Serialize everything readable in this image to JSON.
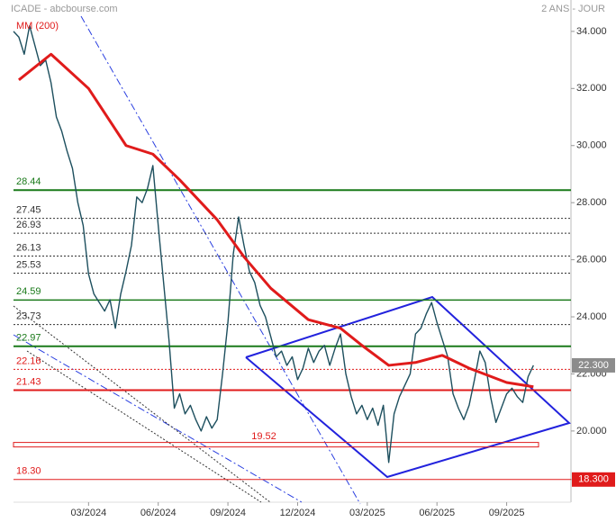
{
  "chart_data": {
    "type": "line",
    "title": "ICADE - abcbourse.com",
    "subtitle": "2 ANS - JOUR",
    "xlim": [
      0,
      104
    ],
    "ylim": [
      17.6,
      35.1
    ],
    "xticks": [
      {
        "value": 14,
        "label": "03/2024"
      },
      {
        "value": 27,
        "label": "06/2024"
      },
      {
        "value": 40,
        "label": "09/2024"
      },
      {
        "value": 53,
        "label": "12/2024"
      },
      {
        "value": 66,
        "label": "03/2025"
      },
      {
        "value": 79,
        "label": "06/2025"
      },
      {
        "value": 92,
        "label": "09/2025"
      }
    ],
    "yticks": [
      {
        "value": 34,
        "label": "34.000"
      },
      {
        "value": 32,
        "label": "32.000"
      },
      {
        "value": 30,
        "label": "30.000"
      },
      {
        "value": 28,
        "label": "28.000"
      },
      {
        "value": 26,
        "label": "26.000"
      },
      {
        "value": 24,
        "label": "24.000"
      },
      {
        "value": 22,
        "label": "22.000"
      },
      {
        "value": 20,
        "label": "20.000"
      },
      {
        "value": 18.3,
        "label": "18.300"
      }
    ],
    "series": [
      {
        "name": "ICADE",
        "color": "#1d4f5e",
        "width": 1.4,
        "x": [
          0,
          1,
          2,
          3,
          4,
          5,
          6,
          7,
          8,
          9,
          10,
          11,
          12,
          13,
          14,
          15,
          16,
          17,
          18,
          19,
          20,
          21,
          22,
          23,
          24,
          25,
          26,
          27,
          28,
          29,
          30,
          31,
          32,
          33,
          34,
          35,
          36,
          37,
          38,
          39,
          40,
          41,
          42,
          43,
          44,
          45,
          46,
          47,
          48,
          49,
          50,
          51,
          52,
          53,
          54,
          55,
          56,
          57,
          58,
          59,
          60,
          61,
          62,
          63,
          64,
          65,
          66,
          67,
          68,
          69,
          70,
          71,
          72,
          73,
          74,
          75,
          76,
          77,
          78,
          79,
          80,
          81,
          82,
          83,
          84,
          85,
          86,
          87,
          88,
          89,
          90,
          91,
          92,
          93,
          94,
          95,
          96,
          97
        ],
        "values": [
          34.0,
          33.8,
          33.2,
          34.2,
          33.5,
          32.8,
          33.0,
          32.2,
          31.0,
          30.5,
          29.8,
          29.2,
          28.0,
          27.2,
          25.5,
          24.8,
          24.5,
          24.2,
          24.6,
          23.6,
          24.8,
          25.6,
          26.5,
          28.2,
          28.0,
          28.5,
          29.3,
          27.2,
          25.2,
          23.2,
          20.8,
          21.3,
          20.6,
          20.9,
          20.4,
          20.0,
          20.5,
          20.1,
          20.4,
          22.0,
          23.8,
          26.2,
          27.5,
          26.5,
          25.6,
          25.2,
          24.4,
          24.0,
          23.3,
          22.6,
          22.8,
          22.3,
          22.6,
          21.8,
          22.2,
          22.9,
          22.4,
          22.8,
          23.0,
          22.3,
          22.9,
          23.4,
          22.0,
          21.2,
          20.6,
          20.9,
          20.4,
          20.8,
          20.2,
          20.9,
          18.9,
          20.6,
          21.2,
          21.6,
          22.0,
          23.4,
          23.6,
          24.1,
          24.5,
          23.8,
          23.2,
          22.6,
          21.3,
          20.8,
          20.4,
          20.9,
          21.8,
          22.8,
          22.4,
          21.2,
          20.3,
          20.8,
          21.3,
          21.5,
          21.2,
          21.0,
          21.9,
          22.3
        ]
      },
      {
        "name": "MM (200)",
        "color": "#e01b1b",
        "width": 3,
        "x": [
          1,
          7,
          14,
          21,
          26,
          31,
          38,
          43,
          48,
          55,
          61,
          65,
          70,
          75,
          80,
          85,
          92,
          97
        ],
        "values": [
          32.3,
          33.2,
          32.0,
          30.0,
          29.7,
          28.8,
          27.4,
          26.1,
          25.0,
          23.9,
          23.6,
          23.0,
          22.3,
          22.4,
          22.65,
          22.2,
          21.7,
          21.55
        ]
      }
    ],
    "levels": [
      {
        "value": 28.44,
        "label": "28.44",
        "color": "#1a7a1a",
        "style": "solid",
        "width": 2
      },
      {
        "value": 27.45,
        "label": "27.45",
        "color": "#333333",
        "style": "dotted",
        "width": 1
      },
      {
        "value": 26.93,
        "label": "26.93",
        "color": "#333333",
        "style": "dotted",
        "width": 1
      },
      {
        "value": 26.13,
        "label": "26.13",
        "color": "#333333",
        "style": "dotted",
        "width": 1
      },
      {
        "value": 25.53,
        "label": "25.53",
        "color": "#333333",
        "style": "dotted",
        "width": 1
      },
      {
        "value": 24.59,
        "label": "24.59",
        "color": "#1a7a1a",
        "style": "solid",
        "width": 1.5
      },
      {
        "value": 23.73,
        "label": "23.73",
        "color": "#333333",
        "style": "dotted",
        "width": 1
      },
      {
        "value": 22.97,
        "label": "22.97",
        "color": "#1a7a1a",
        "style": "solid",
        "width": 2
      },
      {
        "value": 22.16,
        "label": "22.16",
        "color": "#e01b1b",
        "style": "dotted",
        "width": 1
      },
      {
        "value": 21.43,
        "label": "21.43",
        "color": "#e01b1b",
        "style": "solid",
        "width": 2
      },
      {
        "value": 18.3,
        "label": "18.30",
        "color": "#e01b1b",
        "style": "solid",
        "width": 1
      }
    ],
    "zone": {
      "value": 19.52,
      "label": "19.52",
      "color": "#e01b1b"
    },
    "last_price": {
      "value": 22.3,
      "label": "22.300",
      "color": "#8c8c8c"
    },
    "support_badge": {
      "value": 18.3,
      "label": "18.300",
      "color": "#e01b1b"
    }
  }
}
